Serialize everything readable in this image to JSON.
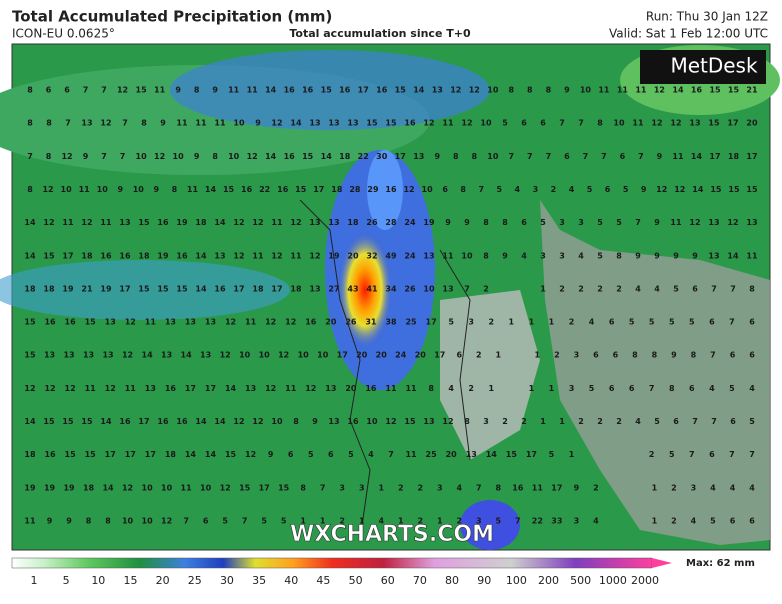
{
  "header": {
    "title": "Total Accumulated Precipitation (mm)",
    "model": "ICON-EU 0.0625°",
    "subtitle": "Total accumulation since T+0",
    "run": "Run: Thu 30 Jan 12Z",
    "valid": "Valid: Sat 1 Feb 12:00 UTC"
  },
  "logo": "MetDesk",
  "watermark": "WXCHARTS.COM",
  "grid_values": [
    [
      8,
      6,
      6,
      7,
      7,
      12,
      15,
      11,
      9,
      8,
      9,
      11,
      11,
      14,
      16,
      16,
      15,
      16,
      17,
      16,
      15,
      14,
      13,
      12,
      12,
      10,
      8,
      8,
      8,
      9,
      10,
      11,
      11,
      11,
      12,
      14,
      16,
      15,
      15,
      21
    ],
    [
      8,
      8,
      7,
      13,
      12,
      7,
      8,
      9,
      11,
      11,
      11,
      10,
      9,
      12,
      14,
      13,
      13,
      13,
      15,
      15,
      16,
      12,
      11,
      12,
      10,
      5,
      6,
      6,
      7,
      7,
      8,
      10,
      11,
      12,
      12,
      13,
      15,
      17,
      20
    ],
    [
      7,
      8,
      12,
      9,
      7,
      7,
      10,
      12,
      10,
      9,
      8,
      10,
      12,
      14,
      16,
      15,
      14,
      18,
      22,
      30,
      17,
      13,
      9,
      8,
      8,
      10,
      7,
      7,
      7,
      6,
      7,
      7,
      6,
      7,
      9,
      11,
      14,
      17,
      18,
      17
    ],
    [
      8,
      12,
      10,
      11,
      10,
      9,
      10,
      9,
      8,
      11,
      14,
      15,
      16,
      22,
      16,
      15,
      17,
      18,
      28,
      29,
      16,
      12,
      10,
      6,
      8,
      7,
      5,
      4,
      3,
      2,
      4,
      5,
      6,
      5,
      9,
      12,
      12,
      14,
      15,
      15,
      15
    ],
    [
      14,
      12,
      11,
      12,
      11,
      13,
      15,
      16,
      19,
      18,
      14,
      12,
      12,
      11,
      12,
      13,
      13,
      18,
      26,
      28,
      24,
      19,
      9,
      9,
      8,
      8,
      6,
      5,
      3,
      3,
      5,
      5,
      7,
      9,
      11,
      12,
      13,
      12,
      13
    ],
    [
      14,
      15,
      17,
      18,
      16,
      16,
      18,
      19,
      16,
      14,
      13,
      12,
      11,
      12,
      11,
      12,
      19,
      20,
      32,
      49,
      24,
      13,
      11,
      10,
      8,
      9,
      4,
      3,
      3,
      4,
      5,
      8,
      9,
      9,
      9,
      9,
      13,
      14,
      11
    ],
    [
      18,
      18,
      19,
      21,
      19,
      17,
      15,
      15,
      15,
      14,
      16,
      17,
      18,
      17,
      18,
      13,
      27,
      43,
      41,
      34,
      26,
      10,
      13,
      7,
      2,
      null,
      null,
      1,
      2,
      2,
      2,
      2,
      4,
      4,
      5,
      6,
      7,
      7,
      8
    ],
    [
      15,
      16,
      16,
      15,
      13,
      12,
      11,
      13,
      13,
      13,
      12,
      11,
      12,
      12,
      16,
      20,
      26,
      31,
      38,
      25,
      17,
      5,
      3,
      2,
      1,
      1,
      1,
      2,
      4,
      6,
      5,
      5,
      5,
      5,
      6,
      7,
      6
    ],
    [
      15,
      13,
      13,
      13,
      13,
      12,
      14,
      13,
      14,
      13,
      12,
      10,
      10,
      12,
      10,
      10,
      17,
      20,
      20,
      24,
      20,
      17,
      6,
      2,
      1,
      null,
      1,
      2,
      3,
      6,
      6,
      8,
      8,
      9,
      8,
      7,
      6,
      6
    ],
    [
      12,
      12,
      12,
      11,
      12,
      11,
      13,
      16,
      17,
      17,
      14,
      13,
      12,
      11,
      12,
      13,
      20,
      16,
      11,
      11,
      8,
      4,
      2,
      1,
      null,
      1,
      1,
      3,
      5,
      6,
      6,
      7,
      8,
      6,
      4,
      5,
      4
    ],
    [
      14,
      15,
      15,
      15,
      14,
      16,
      17,
      16,
      16,
      14,
      14,
      12,
      12,
      10,
      8,
      9,
      13,
      16,
      10,
      12,
      15,
      13,
      12,
      8,
      3,
      2,
      2,
      1,
      1,
      2,
      2,
      2,
      4,
      5,
      6,
      7,
      7,
      6,
      5
    ],
    [
      18,
      16,
      15,
      15,
      17,
      17,
      17,
      18,
      14,
      14,
      15,
      12,
      9,
      6,
      5,
      6,
      5,
      4,
      7,
      11,
      25,
      20,
      13,
      14,
      15,
      17,
      5,
      1,
      null,
      null,
      null,
      2,
      5,
      7,
      6,
      7,
      7
    ],
    [
      19,
      19,
      19,
      18,
      14,
      12,
      10,
      10,
      11,
      10,
      12,
      15,
      17,
      15,
      8,
      7,
      3,
      3,
      1,
      2,
      2,
      3,
      4,
      7,
      8,
      16,
      11,
      17,
      9,
      2,
      null,
      null,
      1,
      2,
      3,
      4,
      4,
      4
    ],
    [
      11,
      9,
      9,
      8,
      8,
      10,
      10,
      12,
      7,
      6,
      5,
      7,
      5,
      5,
      1,
      1,
      2,
      1,
      4,
      1,
      2,
      1,
      2,
      3,
      5,
      7,
      22,
      33,
      3,
      4,
      null,
      null,
      1,
      2,
      4,
      5,
      6,
      6
    ]
  ],
  "colorbar": {
    "labels": [
      1,
      5,
      10,
      15,
      20,
      25,
      30,
      35,
      40,
      45,
      50,
      60,
      70,
      80,
      90,
      100,
      200,
      500,
      1000,
      2000
    ],
    "max_label": "Max: 62 mm"
  }
}
